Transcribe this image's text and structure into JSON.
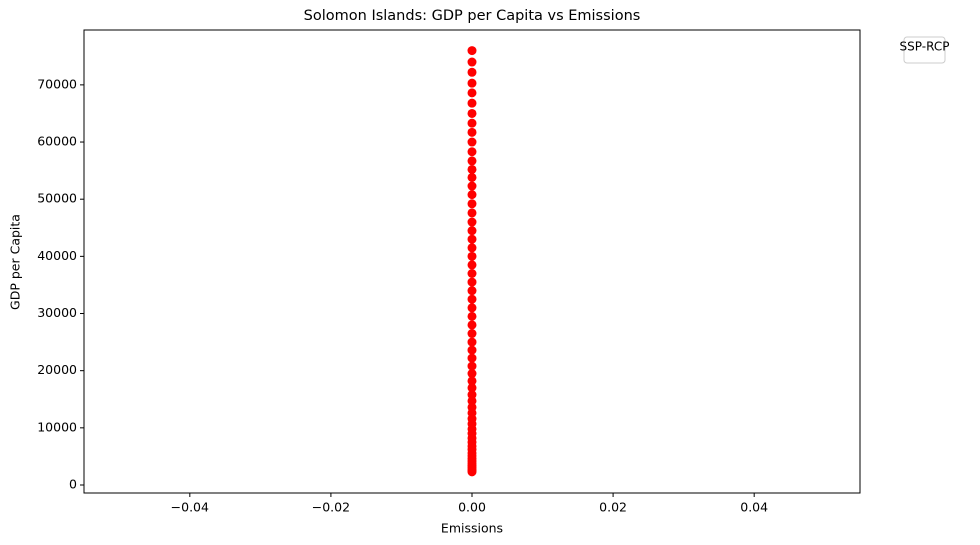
{
  "chart_data": {
    "type": "scatter",
    "title": "Solomon Islands: GDP per Capita vs Emissions",
    "x_label": "Emissions",
    "y_label": "GDP per Capita",
    "legend_title": "SSP-RCP",
    "legend_position": "outside upper right",
    "color": "#ff0000",
    "x": [
      0,
      0,
      0,
      0,
      0,
      0,
      0,
      0,
      0,
      0,
      0,
      0,
      0,
      0,
      0,
      0,
      0,
      0,
      0,
      0,
      0,
      0,
      0,
      0,
      0,
      0,
      0,
      0,
      0,
      0,
      0,
      0,
      0,
      0,
      0,
      0,
      0,
      0,
      0,
      0,
      0,
      0,
      0,
      0,
      0,
      0,
      0,
      0,
      0,
      0,
      0,
      0,
      0,
      0,
      0,
      0,
      0,
      0,
      0,
      0,
      0
    ],
    "values": [
      2300,
      2500,
      2800,
      3100,
      3400,
      3800,
      4200,
      4600,
      5100,
      5600,
      6200,
      6800,
      7500,
      8200,
      9000,
      9800,
      10700,
      11600,
      12600,
      13600,
      14700,
      15800,
      17000,
      18200,
      19500,
      20800,
      22200,
      23600,
      25000,
      26500,
      28000,
      29500,
      31000,
      32500,
      34000,
      35500,
      37000,
      38500,
      40000,
      41500,
      43000,
      44500,
      46000,
      47600,
      49200,
      50800,
      52300,
      53800,
      55200,
      56700,
      58300,
      60000,
      61700,
      63300,
      65000,
      66800,
      68600,
      70300,
      72200,
      74000,
      76000
    ],
    "xlim": [
      -0.055,
      0.055
    ],
    "xticks": [
      {
        "value": -0.04,
        "label": "−0.04"
      },
      {
        "value": -0.02,
        "label": "−0.02"
      },
      {
        "value": 0,
        "label": "0.00"
      },
      {
        "value": 0.02,
        "label": "0.02"
      },
      {
        "value": 0.04,
        "label": "0.04"
      }
    ],
    "ylim": [
      -1400,
      79600
    ],
    "yticks": [
      0,
      10000,
      20000,
      30000,
      40000,
      50000,
      60000,
      70000
    ]
  }
}
